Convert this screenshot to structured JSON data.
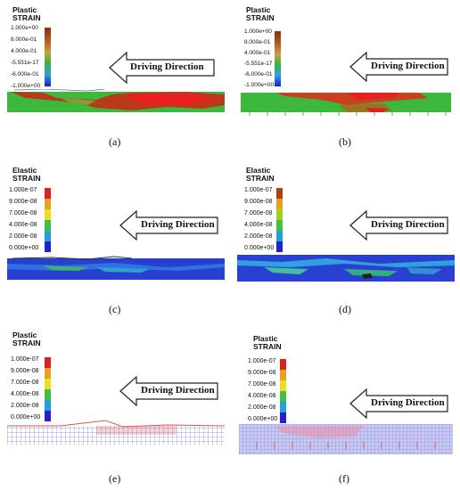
{
  "direction_label": "Driving Direction",
  "panels": [
    {
      "caption": "(a)",
      "title_line1": "Plastic",
      "title_line2": "STRAIN",
      "legend": [
        "1.000e+00",
        "8.000e-01",
        "4.000e-01",
        "-5.551e-17",
        "-6.000e-01",
        "-1.000e+00"
      ]
    },
    {
      "caption": "(b)",
      "title_line1": "Plastic",
      "title_line2": "STRAIN",
      "legend": [
        "1.000e+00",
        "8.000e-01",
        "4.000e-01",
        "-5.551e-17",
        "-6.000e-01",
        "-1.000e+00"
      ]
    },
    {
      "caption": "(c)",
      "title_line1": "Elastic",
      "title_line2": "STRAIN",
      "legend": [
        "1.000e-07",
        "9.000e-08",
        "7.000e-08",
        "4.000e-08",
        "2.000e-08",
        "0.000e+00"
      ]
    },
    {
      "caption": "(d)",
      "title_line1": "Elastic",
      "title_line2": "STRAIN",
      "legend": [
        "1.000e-07",
        "9.000e-08",
        "7.000e-08",
        "4.000e-08",
        "2.000e-08",
        "0.000e+00"
      ]
    },
    {
      "caption": "(e)",
      "title_line1": "Plastic",
      "title_line2": "STRAIN",
      "legend": [
        "1.000e-07",
        "9.000e-08",
        "7.000e-08",
        "4.000e-08",
        "2.000e-08",
        "0.000e+00"
      ]
    },
    {
      "caption": "(f)",
      "title_line1": "Plastic",
      "title_line2": "STRAIN",
      "legend": [
        "1.000e-07",
        "9.000e-08",
        "7.000e-08",
        "4.000e-08",
        "2.000e-08",
        "0.000e+00"
      ]
    }
  ],
  "legend_colors": [
    "#d42020",
    "#e8a020",
    "#e8e020",
    "#40c040",
    "#20a0e0",
    "#2020d0"
  ]
}
